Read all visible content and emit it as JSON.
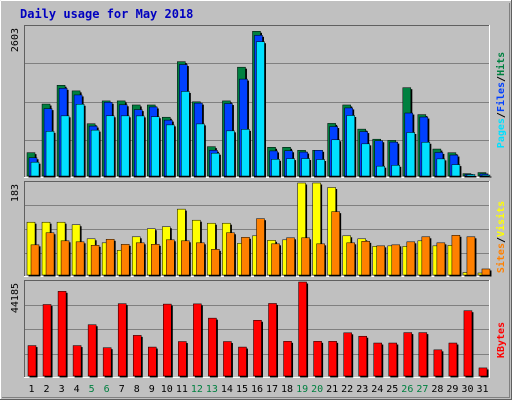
{
  "title": "Daily usage for May 2018",
  "colors": {
    "page_bg": "#c0c0c0",
    "panel_bg": "#c0c0c0",
    "title_text": "#0000c0",
    "hits": "#008040",
    "files": "#0040ff",
    "pages": "#00e0ff",
    "visits": "#ffff00",
    "sites": "#ff8000",
    "kbytes": "#ff0000",
    "weekend_day": "#008040",
    "weekday": "#000000"
  },
  "legend": {
    "top_panel": [
      {
        "label": "Pages",
        "color_key": "pages"
      },
      {
        "label": "Files",
        "color_key": "files"
      },
      {
        "label": "Hits",
        "color_key": "hits"
      }
    ],
    "mid_panel": [
      {
        "label": "Sites",
        "color_key": "sites"
      },
      {
        "label": "Visits",
        "color_key": "visits"
      }
    ],
    "bottom_panel": [
      {
        "label": "KBytes",
        "color_key": "kbytes"
      }
    ],
    "separator": "/"
  },
  "chart_data": [
    {
      "type": "bar",
      "panel": "top",
      "ymax_label": "2603",
      "ylim": [
        0,
        2603
      ],
      "grid": true,
      "categories": [
        "1",
        "2",
        "3",
        "4",
        "5",
        "6",
        "7",
        "8",
        "9",
        "10",
        "11",
        "12",
        "13",
        "14",
        "15",
        "16",
        "17",
        "18",
        "19",
        "20",
        "21",
        "22",
        "23",
        "24",
        "25",
        "26",
        "27",
        "28",
        "29",
        "30",
        "31"
      ],
      "series": [
        {
          "name": "Hits",
          "color_key": "hits",
          "values": [
            408,
            1257,
            1585,
            1487,
            913,
            1312,
            1312,
            1241,
            1241,
            1027,
            1998,
            1296,
            513,
            1312,
            1901,
            2528,
            502,
            502,
            449,
            449,
            919,
            1241,
            819,
            643,
            622,
            1543,
            1073,
            471,
            407,
            42,
            60
          ]
        },
        {
          "name": "Files",
          "color_key": "files",
          "values": [
            319,
            1177,
            1532,
            1416,
            872,
            1287,
            1244,
            1160,
            1206,
            976,
            1947,
            1273,
            450,
            1266,
            1693,
            2458,
            438,
            441,
            418,
            449,
            864,
            1189,
            776,
            616,
            592,
            1100,
            1030,
            412,
            366,
            30,
            37
          ]
        },
        {
          "name": "Pages",
          "color_key": "pages",
          "values": [
            241,
            780,
            1051,
            1253,
            801,
            1052,
            1051,
            1050,
            1035,
            893,
            1477,
            910,
            398,
            789,
            815,
            2346,
            292,
            304,
            305,
            288,
            633,
            1057,
            562,
            172,
            187,
            760,
            589,
            299,
            199,
            26,
            11
          ]
        }
      ]
    },
    {
      "type": "bar",
      "panel": "middle",
      "ymax_label": "183",
      "ylim": [
        0,
        183
      ],
      "grid": true,
      "categories": [
        "1",
        "2",
        "3",
        "4",
        "5",
        "6",
        "7",
        "8",
        "9",
        "10",
        "11",
        "12",
        "13",
        "14",
        "15",
        "16",
        "17",
        "18",
        "19",
        "20",
        "21",
        "22",
        "23",
        "24",
        "25",
        "26",
        "27",
        "28",
        "29",
        "30",
        "31"
      ],
      "series": [
        {
          "name": "Visits",
          "color_key": "visits",
          "values": [
            105,
            105,
            105,
            100,
            72,
            64,
            49,
            76,
            92,
            96,
            131,
            109,
            103,
            103,
            63,
            78,
            69,
            70,
            183,
            183,
            174,
            78,
            72,
            57,
            58,
            57,
            68,
            58,
            59,
            5,
            4
          ]
        },
        {
          "name": "Sites",
          "color_key": "sites",
          "values": [
            60,
            84,
            68,
            66,
            59,
            71,
            61,
            64,
            61,
            70,
            68,
            64,
            51,
            84,
            75,
            112,
            62,
            74,
            74,
            62,
            126,
            64,
            67,
            58,
            60,
            66,
            76,
            64,
            79,
            76,
            12
          ]
        }
      ]
    },
    {
      "type": "bar",
      "panel": "bottom",
      "ymax_label": "44185",
      "ylim": [
        0,
        44185
      ],
      "grid": true,
      "categories": [
        "1",
        "2",
        "3",
        "4",
        "5",
        "6",
        "7",
        "8",
        "9",
        "10",
        "11",
        "12",
        "13",
        "14",
        "15",
        "16",
        "17",
        "18",
        "19",
        "20",
        "21",
        "22",
        "23",
        "24",
        "25",
        "26",
        "27",
        "28",
        "29",
        "30",
        "31"
      ],
      "series": [
        {
          "name": "KBytes",
          "color_key": "kbytes",
          "values": [
            14300,
            33600,
            39800,
            14300,
            24100,
            13300,
            34000,
            19100,
            13600,
            33800,
            16200,
            33900,
            27200,
            16200,
            13600,
            26200,
            34100,
            16300,
            44185,
            16300,
            16300,
            20300,
            18700,
            15500,
            15500,
            20400,
            20400,
            12300,
            15500,
            30700,
            3800
          ]
        }
      ]
    }
  ],
  "x_axis": {
    "labels": [
      "1",
      "2",
      "3",
      "4",
      "5",
      "6",
      "7",
      "8",
      "9",
      "10",
      "11",
      "12",
      "13",
      "14",
      "15",
      "16",
      "17",
      "18",
      "19",
      "20",
      "21",
      "22",
      "23",
      "24",
      "25",
      "26",
      "27",
      "28",
      "29",
      "30",
      "31"
    ],
    "weekend": [
      false,
      false,
      false,
      false,
      true,
      true,
      false,
      false,
      false,
      false,
      false,
      true,
      true,
      false,
      false,
      false,
      false,
      false,
      true,
      true,
      false,
      false,
      false,
      false,
      false,
      true,
      true,
      false,
      false,
      false,
      false
    ]
  }
}
